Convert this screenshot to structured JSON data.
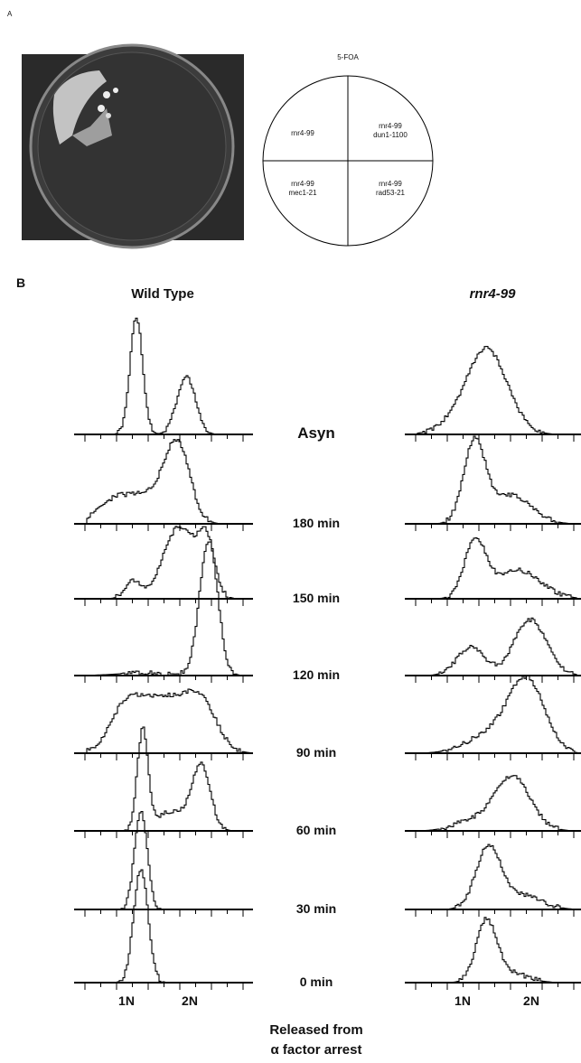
{
  "panel_a": {
    "label": "A",
    "plate_title": "5-FOA",
    "quadrants": [
      [
        "rnr4-99"
      ],
      [
        "rnr4-99",
        "dun1-1100"
      ],
      [
        "rnr4-99",
        "mec1-21"
      ],
      [
        "rnr4-99",
        "rad53-21"
      ]
    ]
  },
  "panel_b": {
    "label": "B",
    "columns": [
      "Wild Type",
      "rnr4-99"
    ],
    "rows": [
      "Asyn",
      "180 min",
      "150 min",
      "120 min",
      "90 min",
      "60 min",
      "30 min",
      "0 min"
    ],
    "x_tick_labels": [
      "1N",
      "2N"
    ],
    "footer": [
      "Released from",
      "α factor arrest"
    ]
  }
}
